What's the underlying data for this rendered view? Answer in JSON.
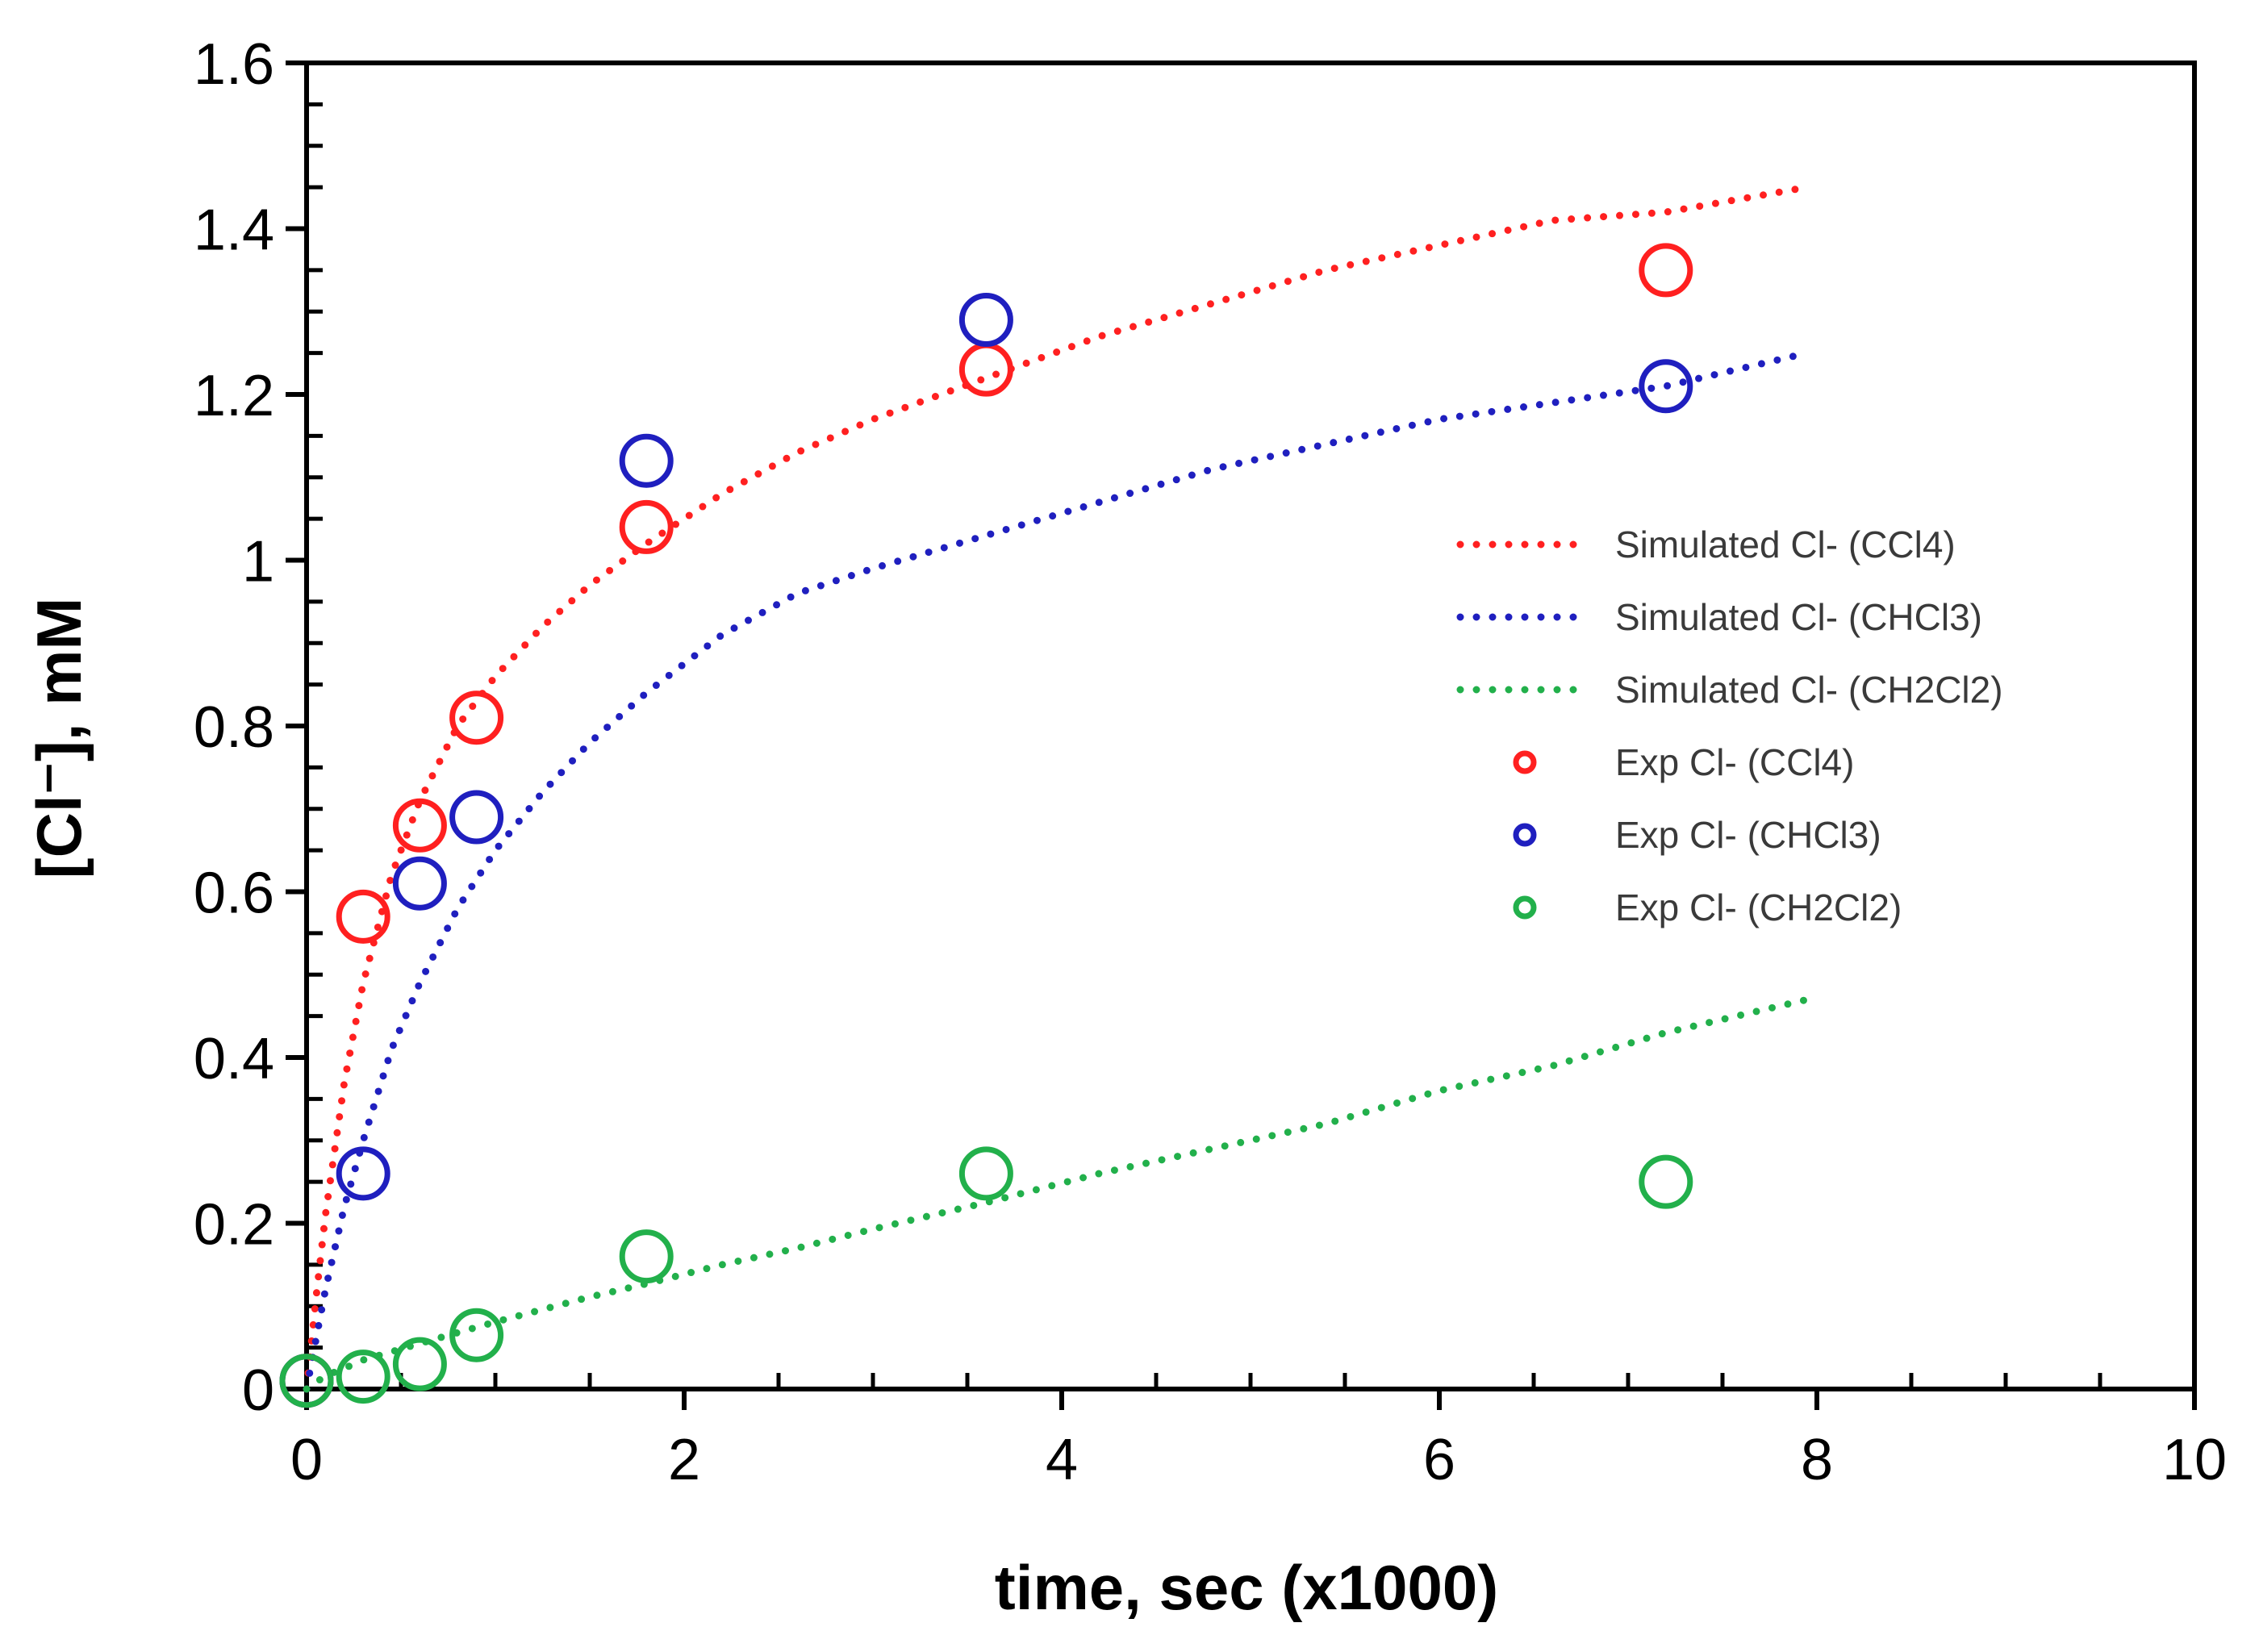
{
  "chart_data": {
    "type": "scatter",
    "title": "",
    "xlabel": "time, sec (x1000)",
    "ylabel": "[Cl⁻], mM",
    "xlim": [
      0,
      10
    ],
    "ylim": [
      0,
      1.6
    ],
    "x_ticks": [
      0,
      2,
      4,
      6,
      8,
      10
    ],
    "x_tick_labels": [
      "0",
      "2",
      "4",
      "6",
      "8",
      "10"
    ],
    "y_ticks": [
      0,
      0.2,
      0.4,
      0.6,
      0.8,
      1.0,
      1.2,
      1.4,
      1.6
    ],
    "y_tick_labels": [
      "0",
      "0.2",
      "0.4",
      "0.6",
      "0.8",
      "1",
      "1.2",
      "1.4",
      "1.6"
    ],
    "x_minor_step": 0.5,
    "y_minor_step": 0.05,
    "grid": false,
    "legend_position": "right-middle",
    "simulated_x": [
      0,
      0.05,
      0.1,
      0.2,
      0.3,
      0.45,
      0.6,
      0.8,
      1.0,
      1.25,
      1.5,
      1.8,
      2.2,
      2.6,
      3.0,
      3.6,
      4.2,
      4.8,
      5.4,
      6.0,
      6.6,
      7.2,
      7.95
    ],
    "series": [
      {
        "name": "Simulated Cl- (CCl4)",
        "kind": "line",
        "style": "dotted",
        "color": "#ff2020",
        "values": [
          0,
          0.11,
          0.21,
          0.37,
          0.49,
          0.62,
          0.71,
          0.8,
          0.86,
          0.92,
          0.97,
          1.02,
          1.08,
          1.13,
          1.17,
          1.22,
          1.27,
          1.31,
          1.35,
          1.38,
          1.41,
          1.42,
          1.45
        ]
      },
      {
        "name": "Simulated Cl- (CHCl3)",
        "kind": "line",
        "style": "dotted",
        "color": "#1f1fbf",
        "values": [
          0,
          0.06,
          0.12,
          0.22,
          0.3,
          0.41,
          0.49,
          0.58,
          0.65,
          0.72,
          0.78,
          0.84,
          0.91,
          0.96,
          0.99,
          1.03,
          1.07,
          1.11,
          1.14,
          1.17,
          1.19,
          1.21,
          1.25
        ]
      },
      {
        "name": "Simulated Cl- (CH2Cl2)",
        "kind": "line",
        "style": "dotted",
        "color": "#22b04b",
        "values": [
          0,
          0.008,
          0.016,
          0.025,
          0.035,
          0.045,
          0.055,
          0.068,
          0.081,
          0.096,
          0.111,
          0.127,
          0.15,
          0.17,
          0.193,
          0.225,
          0.26,
          0.29,
          0.32,
          0.36,
          0.39,
          0.43,
          0.47
        ]
      },
      {
        "name": "Exp Cl- (CCl4)",
        "kind": "scatter",
        "color": "#ff2020",
        "x": [
          0,
          0.3,
          0.6,
          0.9,
          1.8,
          3.6,
          7.2
        ],
        "values": [
          0.01,
          0.57,
          0.68,
          0.81,
          1.04,
          1.23,
          1.35
        ]
      },
      {
        "name": "Exp Cl- (CHCl3)",
        "kind": "scatter",
        "color": "#1f1fbf",
        "x": [
          0,
          0.3,
          0.6,
          0.9,
          1.8,
          3.6,
          7.2
        ],
        "values": [
          0.01,
          0.26,
          0.61,
          0.69,
          1.12,
          1.29,
          1.21
        ]
      },
      {
        "name": "Exp Cl- (CH2Cl2)",
        "kind": "scatter",
        "color": "#22b04b",
        "x": [
          0,
          0.3,
          0.6,
          0.9,
          1.8,
          3.6,
          7.2
        ],
        "values": [
          0.01,
          0.015,
          0.03,
          0.065,
          0.16,
          0.26,
          0.25
        ]
      }
    ]
  }
}
